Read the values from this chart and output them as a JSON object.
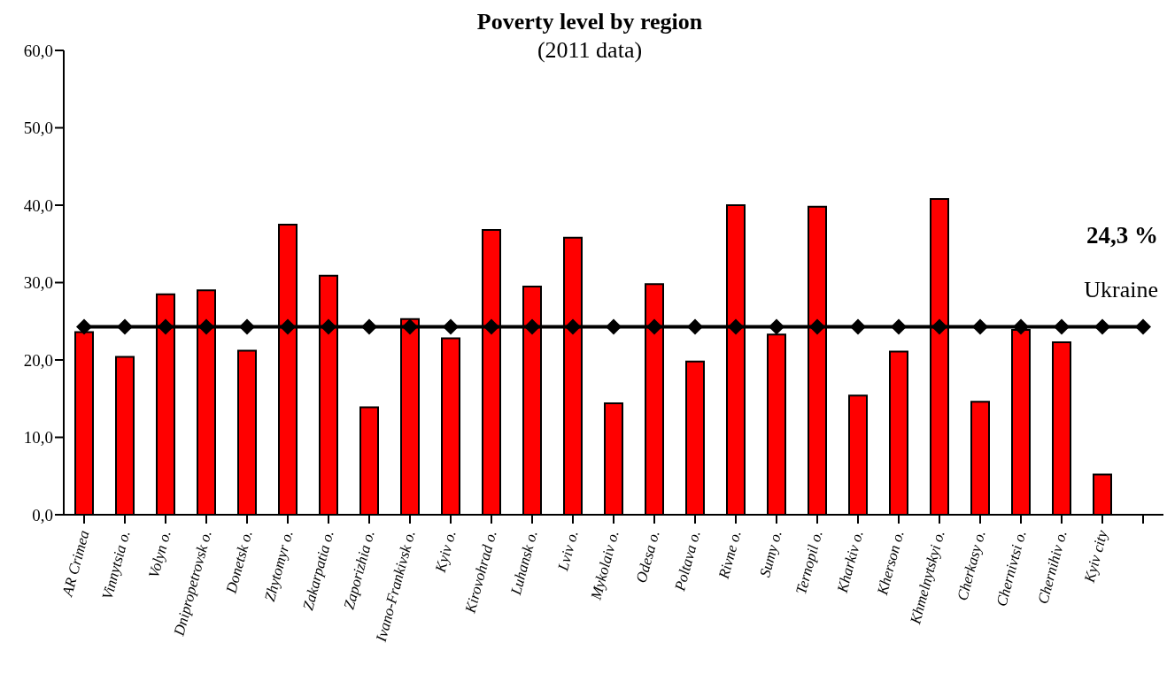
{
  "chart_data": {
    "type": "bar",
    "title": "Poverty level by region",
    "subtitle": "(2011 data)",
    "categories": [
      "AR Crimea",
      "Vinnytsia o.",
      "Volyn o.",
      "Dnipropetrovsk o.",
      "Donetsk o.",
      "Zhytomyr o.",
      "Zakarpatia o.",
      "Zaporizhia o.",
      "Ivano-Frankivsk o.",
      "Kyiv o.",
      "Kirovohrad o.",
      "Luhansk o.",
      "Lviv o.",
      "Mykolaiv o.",
      "Odesa o.",
      "Poltava o.",
      "Rivne o.",
      "Sumy o.",
      "Ternopil o.",
      "Kharkiv o.",
      "Kherson o.",
      "Khmelnytskyi o.",
      "Cherkasy o.",
      "Chernivtsi o.",
      "Chernihiv o.",
      "Kyiv city",
      null
    ],
    "series": [
      {
        "color": "#ff0000",
        "values": [
          23.6,
          20.4,
          28.5,
          29.0,
          21.2,
          37.5,
          30.9,
          13.9,
          25.3,
          22.8,
          36.8,
          29.5,
          35.8,
          14.4,
          29.8,
          19.8,
          40.0,
          23.3,
          39.8,
          15.4,
          21.1,
          40.8,
          14.6,
          23.9,
          22.3,
          5.2,
          null
        ]
      },
      {
        "type": "line",
        "color": "#000000",
        "marker": "diamond",
        "values": [
          24.3,
          24.3,
          24.3,
          24.3,
          24.3,
          24.3,
          24.3,
          24.3,
          24.3,
          24.3,
          24.3,
          24.3,
          24.3,
          24.3,
          24.3,
          24.3,
          24.3,
          24.3,
          24.3,
          24.3,
          24.3,
          24.3,
          24.3,
          24.3,
          24.3,
          24.3,
          24.3
        ]
      }
    ],
    "ylim": [
      0,
      60
    ],
    "yticks": [
      {
        "value": 0,
        "label": "0,0"
      },
      {
        "value": 10,
        "label": "10,0"
      },
      {
        "value": 20,
        "label": "20,0"
      },
      {
        "value": 30,
        "label": "30,0"
      },
      {
        "value": 40,
        "label": "40,0"
      },
      {
        "value": 50,
        "label": "50,0"
      },
      {
        "value": 60,
        "label": "60,0"
      }
    ],
    "grid": false,
    "legend": false,
    "annotations": [
      "24,3 %",
      "Ukraine"
    ]
  }
}
